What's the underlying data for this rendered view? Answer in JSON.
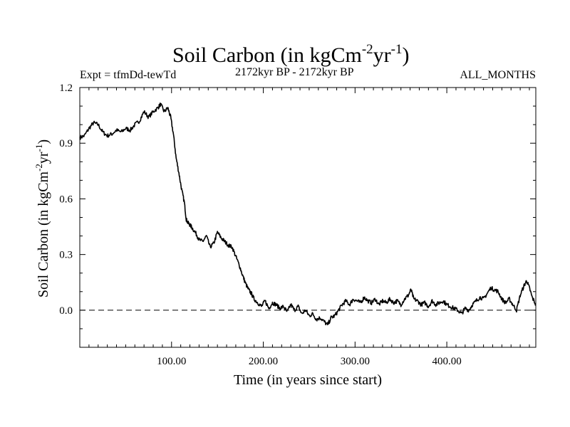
{
  "header": {
    "title_main": "Soil Carbon (in kgCm",
    "title_sup1": "-2",
    "title_mid": "yr",
    "title_sup2": "-1",
    "title_end": ")",
    "experiment": "Expt = tfmDd-tewTd",
    "period": "2172kyr BP - 2172kyr BP",
    "months": "ALL_MONTHS"
  },
  "axes": {
    "xlabel": "Time (in years since start)",
    "ylabel_main": "Soil Carbon (in kgCm",
    "ylabel_sup1": "-2",
    "ylabel_mid": "yr",
    "ylabel_sup2": "-1",
    "ylabel_end": ")",
    "x_ticks": [
      {
        "value": 100,
        "label": "100.00"
      },
      {
        "value": 200,
        "label": "200.00"
      },
      {
        "value": 300,
        "label": "300.00"
      },
      {
        "value": 400,
        "label": "400.00"
      }
    ],
    "y_ticks": [
      {
        "value": 0.0,
        "label": "0.0"
      },
      {
        "value": 0.3,
        "label": "0.3"
      },
      {
        "value": 0.6,
        "label": "0.6"
      },
      {
        "value": 0.9,
        "label": "0.9"
      },
      {
        "value": 1.2,
        "label": "1.2"
      }
    ]
  },
  "chart_data": {
    "type": "line",
    "title": "Soil Carbon (in kgCm-2yr-1)",
    "xlabel": "Time (in years since start)",
    "ylabel": "Soil Carbon (in kgCm-2yr-1)",
    "xlim": [
      0,
      497
    ],
    "ylim": [
      -0.2,
      1.2
    ],
    "reference_line": {
      "y": 0.0,
      "style": "dashed"
    },
    "series": [
      {
        "name": "Soil Carbon",
        "points": [
          [
            0,
            0.93
          ],
          [
            5,
            0.94
          ],
          [
            10,
            0.98
          ],
          [
            15,
            1.01
          ],
          [
            20,
            1.0
          ],
          [
            25,
            0.96
          ],
          [
            30,
            0.94
          ],
          [
            35,
            0.95
          ],
          [
            40,
            0.97
          ],
          [
            45,
            0.96
          ],
          [
            50,
            0.98
          ],
          [
            55,
            0.97
          ],
          [
            60,
            1.0
          ],
          [
            65,
            1.02
          ],
          [
            70,
            1.07
          ],
          [
            75,
            1.04
          ],
          [
            80,
            1.07
          ],
          [
            85,
            1.09
          ],
          [
            88,
            1.11
          ],
          [
            92,
            1.07
          ],
          [
            96,
            1.09
          ],
          [
            99,
            1.04
          ],
          [
            102,
            0.95
          ],
          [
            105,
            0.82
          ],
          [
            108,
            0.74
          ],
          [
            111,
            0.65
          ],
          [
            114,
            0.58
          ],
          [
            116,
            0.49
          ],
          [
            118,
            0.47
          ],
          [
            120,
            0.46
          ],
          [
            123,
            0.44
          ],
          [
            127,
            0.41
          ],
          [
            130,
            0.38
          ],
          [
            134,
            0.37
          ],
          [
            138,
            0.4
          ],
          [
            142,
            0.34
          ],
          [
            146,
            0.36
          ],
          [
            150,
            0.42
          ],
          [
            154,
            0.39
          ],
          [
            158,
            0.37
          ],
          [
            162,
            0.35
          ],
          [
            166,
            0.34
          ],
          [
            170,
            0.29
          ],
          [
            174,
            0.24
          ],
          [
            178,
            0.18
          ],
          [
            181,
            0.14
          ],
          [
            184,
            0.11
          ],
          [
            187,
            0.09
          ],
          [
            190,
            0.06
          ],
          [
            194,
            0.04
          ],
          [
            198,
            0.02
          ],
          [
            202,
            0.05
          ],
          [
            206,
            0.01
          ],
          [
            210,
            0.04
          ],
          [
            214,
            0.03
          ],
          [
            218,
            0.01
          ],
          [
            222,
            0.02
          ],
          [
            226,
            -0.01
          ],
          [
            230,
            0.03
          ],
          [
            234,
            0.0
          ],
          [
            238,
            0.02
          ],
          [
            242,
            -0.02
          ],
          [
            246,
            0.0
          ],
          [
            250,
            -0.03
          ],
          [
            254,
            -0.02
          ],
          [
            258,
            -0.05
          ],
          [
            262,
            -0.04
          ],
          [
            266,
            -0.06
          ],
          [
            270,
            -0.08
          ],
          [
            274,
            -0.04
          ],
          [
            278,
            -0.03
          ],
          [
            282,
            0.0
          ],
          [
            286,
            0.03
          ],
          [
            290,
            0.05
          ],
          [
            294,
            0.03
          ],
          [
            298,
            0.06
          ],
          [
            302,
            0.05
          ],
          [
            306,
            0.04
          ],
          [
            310,
            0.07
          ],
          [
            314,
            0.05
          ],
          [
            318,
            0.04
          ],
          [
            322,
            0.06
          ],
          [
            326,
            0.03
          ],
          [
            330,
            0.05
          ],
          [
            334,
            0.04
          ],
          [
            338,
            0.06
          ],
          [
            342,
            0.04
          ],
          [
            346,
            0.05
          ],
          [
            350,
            0.03
          ],
          [
            354,
            0.06
          ],
          [
            358,
            0.08
          ],
          [
            361,
            0.11
          ],
          [
            364,
            0.06
          ],
          [
            368,
            0.05
          ],
          [
            372,
            0.03
          ],
          [
            376,
            0.04
          ],
          [
            380,
            0.02
          ],
          [
            384,
            0.05
          ],
          [
            388,
            0.03
          ],
          [
            392,
            0.04
          ],
          [
            396,
            0.05
          ],
          [
            400,
            0.03
          ],
          [
            404,
            0.02
          ],
          [
            408,
            0.01
          ],
          [
            412,
            0.0
          ],
          [
            416,
            -0.02
          ],
          [
            420,
            0.01
          ],
          [
            424,
            0.0
          ],
          [
            428,
            0.03
          ],
          [
            432,
            0.05
          ],
          [
            436,
            0.07
          ],
          [
            440,
            0.06
          ],
          [
            444,
            0.09
          ],
          [
            448,
            0.12
          ],
          [
            452,
            0.11
          ],
          [
            456,
            0.1
          ],
          [
            460,
            0.06
          ],
          [
            464,
            0.04
          ],
          [
            468,
            0.06
          ],
          [
            472,
            0.03
          ],
          [
            476,
            0.0
          ],
          [
            480,
            0.08
          ],
          [
            484,
            0.13
          ],
          [
            487,
            0.16
          ],
          [
            490,
            0.12
          ],
          [
            493,
            0.07
          ],
          [
            497,
            0.03
          ]
        ]
      }
    ]
  },
  "style": {
    "line_color": "#000000",
    "background": "#ffffff"
  }
}
